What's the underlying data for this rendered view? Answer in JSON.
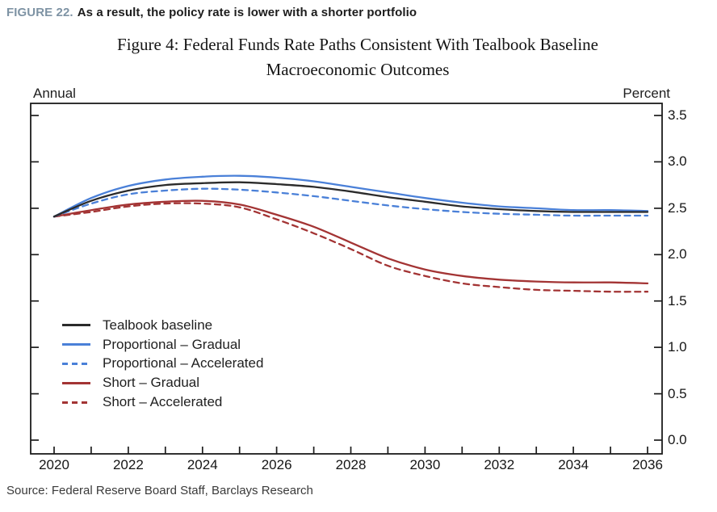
{
  "header": {
    "figure_label": "FIGURE 22.",
    "figure_title": "As a result, the policy rate is lower with a shorter portfolio"
  },
  "title": {
    "line1": "Figure 4: Federal Funds Rate Paths Consistent With Tealbook Baseline",
    "line2": "Macroeconomic Outcomes"
  },
  "axis_labels": {
    "left_unit": "Annual",
    "right_unit": "Percent"
  },
  "source": "Source: Federal Reserve Board Staff, Barclays Research",
  "colors": {
    "header_label": "#7e93a4",
    "frame": "#1c1c1c",
    "baseline_black": "#2b2b2b",
    "proportional_blue": "#4a80d8",
    "short_red": "#a33434"
  },
  "chart_data": {
    "type": "line",
    "title": "Figure 4: Federal Funds Rate Paths Consistent With Tealbook Baseline Macroeconomic Outcomes",
    "xlabel": "",
    "ylabel": "Percent",
    "ylim": [
      0.0,
      3.5
    ],
    "xlim": [
      2020,
      2036
    ],
    "grid": false,
    "legend_position": "inside lower-left",
    "x": [
      2020,
      2021,
      2022,
      2023,
      2024,
      2025,
      2026,
      2027,
      2028,
      2029,
      2030,
      2031,
      2032,
      2033,
      2034,
      2035,
      2036
    ],
    "xtick_labels": [
      "2020",
      "2022",
      "2024",
      "2026",
      "2028",
      "2030",
      "2032",
      "2034",
      "2036"
    ],
    "ytick_labels": [
      "3.5",
      "3.0",
      "2.5",
      "2.0",
      "1.5",
      "1.0",
      "0.5",
      "0.0"
    ],
    "series": [
      {
        "name": "Tealbook baseline",
        "color": "#2b2b2b",
        "dash": "solid",
        "values": [
          2.41,
          2.58,
          2.69,
          2.75,
          2.77,
          2.78,
          2.76,
          2.73,
          2.68,
          2.62,
          2.57,
          2.52,
          2.49,
          2.47,
          2.46,
          2.46,
          2.46
        ]
      },
      {
        "name": "Proportional – Gradual",
        "color": "#4a80d8",
        "dash": "solid",
        "values": [
          2.41,
          2.61,
          2.74,
          2.81,
          2.84,
          2.85,
          2.83,
          2.79,
          2.73,
          2.67,
          2.61,
          2.56,
          2.52,
          2.5,
          2.48,
          2.48,
          2.47
        ]
      },
      {
        "name": "Proportional – Accelerated",
        "color": "#4a80d8",
        "dash": "dashed",
        "values": [
          2.41,
          2.55,
          2.65,
          2.69,
          2.71,
          2.7,
          2.67,
          2.63,
          2.58,
          2.53,
          2.49,
          2.46,
          2.44,
          2.43,
          2.42,
          2.42,
          2.42
        ]
      },
      {
        "name": "Short – Gradual",
        "color": "#a33434",
        "dash": "solid",
        "values": [
          2.41,
          2.48,
          2.54,
          2.57,
          2.58,
          2.54,
          2.43,
          2.3,
          2.13,
          1.96,
          1.84,
          1.77,
          1.73,
          1.71,
          1.7,
          1.7,
          1.69
        ]
      },
      {
        "name": "Short – Accelerated",
        "color": "#a33434",
        "dash": "dashed",
        "values": [
          2.41,
          2.46,
          2.52,
          2.55,
          2.55,
          2.51,
          2.38,
          2.23,
          2.06,
          1.88,
          1.77,
          1.69,
          1.65,
          1.62,
          1.61,
          1.6,
          1.6
        ]
      }
    ]
  }
}
